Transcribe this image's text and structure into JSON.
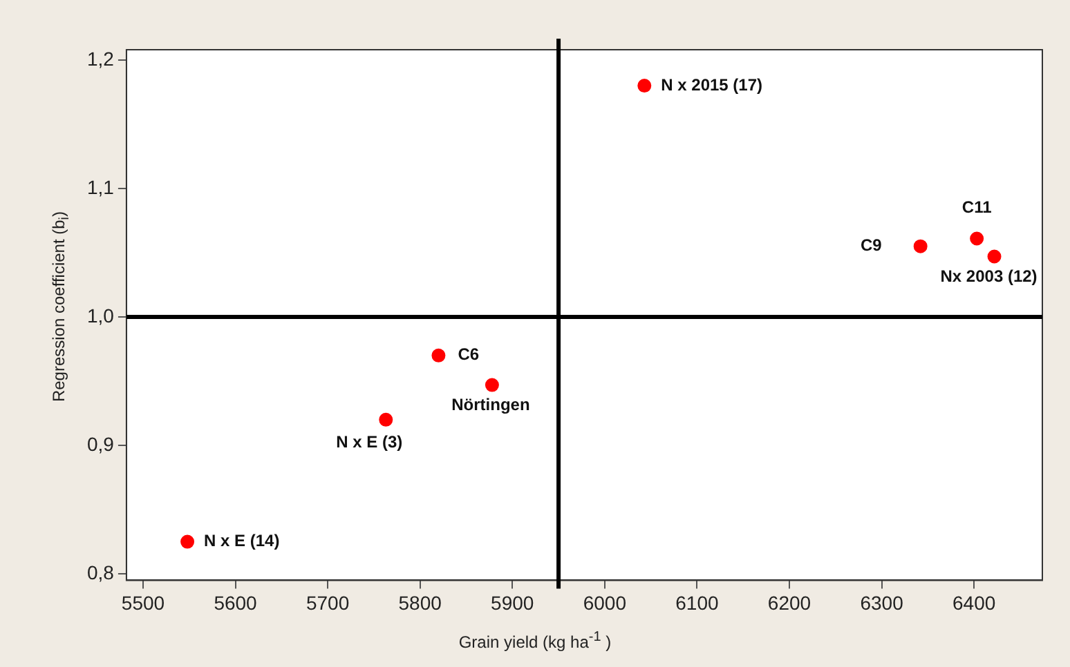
{
  "chart_data": {
    "type": "scatter",
    "xlabel": "Grain yield (kg ha$^{-1}$ )",
    "ylabel": "Regression coefficient (b$_{i}$)",
    "x": [
      6043,
      6403,
      6342,
      6422,
      5820,
      5878,
      5763,
      5548
    ],
    "series": [
      {
        "color": "#ff0000",
        "values": [
          1.18,
          1.061,
          1.055,
          1.047,
          0.97,
          0.947,
          0.92,
          0.825
        ]
      }
    ],
    "annotations": [
      {
        "text": "N x 2015 (17)",
        "x": 6043,
        "y": 1.18
      },
      {
        "text": "C11",
        "x": 6403,
        "y": 1.061
      },
      {
        "text": "C9",
        "x": 6342,
        "y": 1.055
      },
      {
        "text": "Nx 2003 (12)",
        "x": 6422,
        "y": 1.047
      },
      {
        "text": "C6",
        "x": 5820,
        "y": 0.97
      },
      {
        "text": "Nörtingen",
        "x": 5878,
        "y": 0.947
      },
      {
        "text": "N x E (3)",
        "x": 5763,
        "y": 0.92
      },
      {
        "text": "N x E (14)",
        "x": 5548,
        "y": 0.825
      }
    ],
    "ref_lines": [
      {
        "axis": "x",
        "value": 5950,
        "color": "#000000"
      },
      {
        "axis": "y",
        "value": 1.0,
        "color": "#000000"
      }
    ],
    "xlim": [
      5482,
      6474
    ],
    "ylim": [
      0.795,
      1.208
    ],
    "xticks": [
      5500,
      5600,
      5700,
      5800,
      5900,
      6000,
      6100,
      6200,
      6300,
      6400
    ],
    "yticks": [
      {
        "value": 0.8,
        "label": "0,8"
      },
      {
        "value": 0.9,
        "label": "0,9"
      },
      {
        "value": 1.0,
        "label": "1,0"
      },
      {
        "value": 1.1,
        "label": "1,1"
      },
      {
        "value": 1.2,
        "label": "1,2"
      }
    ],
    "grid": false,
    "legend": false,
    "marker": "circle"
  }
}
